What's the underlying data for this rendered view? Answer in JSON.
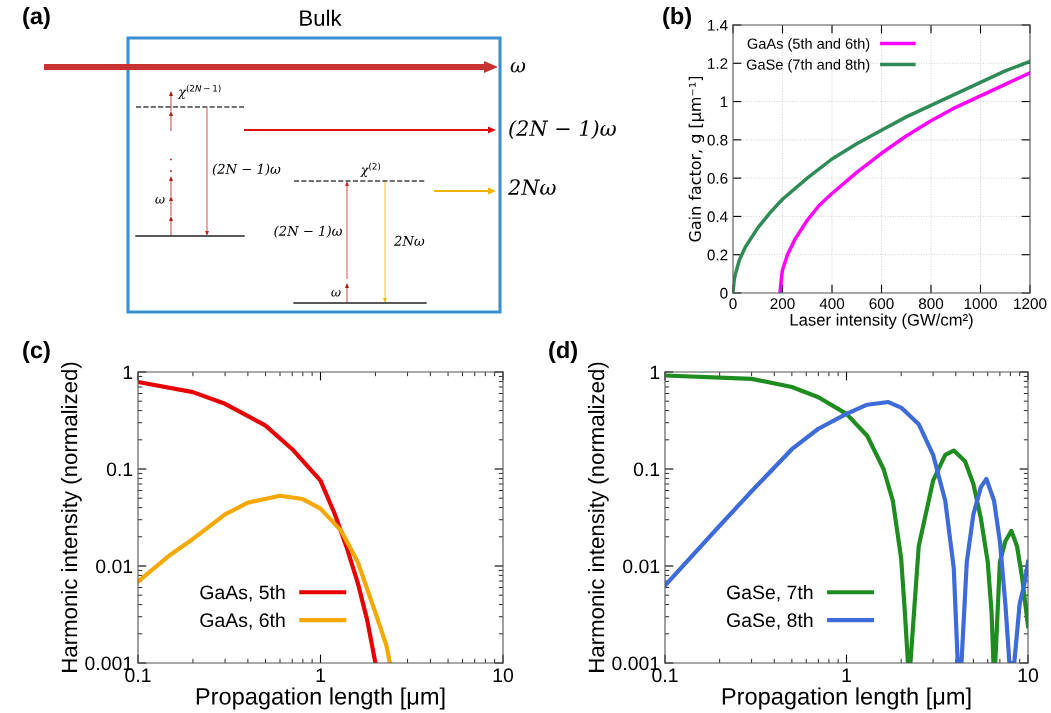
{
  "chart_data": [
    {
      "type": "other",
      "title": "Bulk",
      "annotations": [
        "(a)",
        "ω",
        "(2N − 1)ω",
        "2Nω",
        "χ$^{(2N−1)}$",
        "(2N − 1)ω",
        "ω",
        "χ$^{(2)}$",
        "(2N − 1)ω",
        "2Nω",
        "ω"
      ]
    },
    {
      "type": "line",
      "annotations": [
        "(b)"
      ],
      "xlabel": "Laser intensity (GW/cm²)",
      "ylabel": "Gain factor, g [μm⁻¹]",
      "xlim": [
        0,
        1200
      ],
      "ylim": [
        0,
        1.4
      ],
      "xticks": [
        0,
        200,
        400,
        600,
        800,
        1000,
        1200
      ],
      "yticks": [
        0,
        0.2,
        0.4,
        0.6,
        0.8,
        1,
        1.2,
        1.4
      ],
      "grid": true,
      "legend": "top left",
      "series": [
        {
          "name": "GaAs (5th and 6th)",
          "color": "#ff00ff",
          "x": [
            190,
            195,
            200,
            220,
            250,
            300,
            350,
            400,
            500,
            600,
            700,
            800,
            900,
            1000,
            1100,
            1200
          ],
          "values": [
            0,
            0.07,
            0.12,
            0.2,
            0.28,
            0.38,
            0.46,
            0.52,
            0.63,
            0.73,
            0.82,
            0.9,
            0.97,
            1.03,
            1.09,
            1.15
          ]
        },
        {
          "name": "GaSe (7th and 8th)",
          "color": "#2e8b57",
          "x": [
            0,
            5,
            10,
            25,
            50,
            100,
            150,
            200,
            300,
            400,
            500,
            600,
            700,
            800,
            900,
            1000,
            1100,
            1200
          ],
          "values": [
            0,
            0.07,
            0.1,
            0.17,
            0.24,
            0.34,
            0.42,
            0.49,
            0.6,
            0.7,
            0.78,
            0.85,
            0.92,
            0.98,
            1.04,
            1.1,
            1.16,
            1.21
          ]
        }
      ]
    },
    {
      "type": "line",
      "annotations": [
        "(c)"
      ],
      "xlabel": "Propagation length [μm]",
      "ylabel": "Harmonic intensity (normalized)",
      "log": "xy",
      "xlim": [
        0.1,
        10
      ],
      "ylim": [
        0.001,
        1
      ],
      "xticks": [
        0.1,
        1,
        10
      ],
      "yticks": [
        0.001,
        0.01,
        0.1,
        1
      ],
      "grid": false,
      "legend": "bottom left",
      "series": [
        {
          "name": "GaAs, 5th",
          "color": "#e60000",
          "x": [
            0.1,
            0.2,
            0.3,
            0.5,
            0.7,
            1,
            1.2,
            1.4,
            1.6,
            1.8,
            2.0
          ],
          "values": [
            0.79,
            0.62,
            0.47,
            0.28,
            0.16,
            0.076,
            0.034,
            0.015,
            0.0067,
            0.0028,
            0.001
          ]
        },
        {
          "name": "GaAs, 6th",
          "color": "#f5a800",
          "x": [
            0.1,
            0.15,
            0.2,
            0.3,
            0.4,
            0.6,
            0.8,
            1,
            1.3,
            1.6,
            2,
            2.3,
            2.4
          ],
          "values": [
            0.0069,
            0.013,
            0.019,
            0.034,
            0.045,
            0.053,
            0.049,
            0.039,
            0.023,
            0.011,
            0.0033,
            0.0015,
            0.001
          ]
        }
      ]
    },
    {
      "type": "line",
      "annotations": [
        "(d)"
      ],
      "xlabel": "Propagation length [μm]",
      "ylabel": "Harmonic intensity (normalized)",
      "log": "xy",
      "xlim": [
        0.1,
        10
      ],
      "ylim": [
        0.001,
        1
      ],
      "xticks": [
        0.1,
        1,
        10
      ],
      "yticks": [
        0.001,
        0.01,
        0.1,
        1
      ],
      "grid": false,
      "legend": "bottom left",
      "series": [
        {
          "name": "GaSe, 7th",
          "color": "#1e8c1e",
          "x": [
            0.1,
            0.3,
            0.5,
            0.7,
            1,
            1.3,
            1.6,
            1.8,
            2.0,
            2.1,
            2.18,
            2.25,
            2.5,
            3,
            3.5,
            3.9,
            4.5,
            5,
            5.5,
            6,
            6.3,
            6.45,
            6.6,
            7,
            7.5,
            8.1,
            8.7,
            9.3,
            10
          ],
          "values": [
            0.92,
            0.85,
            0.7,
            0.55,
            0.37,
            0.22,
            0.1,
            0.047,
            0.012,
            0.0032,
            0.001,
            0.001,
            0.016,
            0.076,
            0.14,
            0.155,
            0.12,
            0.07,
            0.031,
            0.011,
            0.0033,
            0.001,
            0.001,
            0.011,
            0.018,
            0.023,
            0.016,
            0.0074,
            0.0024
          ]
        },
        {
          "name": "GaSe, 8th",
          "color": "#3d6bd9",
          "x": [
            0.1,
            0.2,
            0.3,
            0.5,
            0.7,
            1,
            1.3,
            1.7,
            2,
            2.5,
            3,
            3.5,
            3.9,
            4.1,
            4.3,
            4.6,
            5,
            5.5,
            5.9,
            6.5,
            7,
            7.5,
            7.9,
            8.4,
            9,
            9.5,
            10
          ],
          "values": [
            0.0063,
            0.026,
            0.059,
            0.16,
            0.26,
            0.37,
            0.46,
            0.49,
            0.43,
            0.29,
            0.14,
            0.047,
            0.0095,
            0.001,
            0.001,
            0.011,
            0.034,
            0.065,
            0.079,
            0.047,
            0.018,
            0.0041,
            0.001,
            0.001,
            0.0041,
            0.0062,
            0.011
          ]
        }
      ]
    }
  ]
}
